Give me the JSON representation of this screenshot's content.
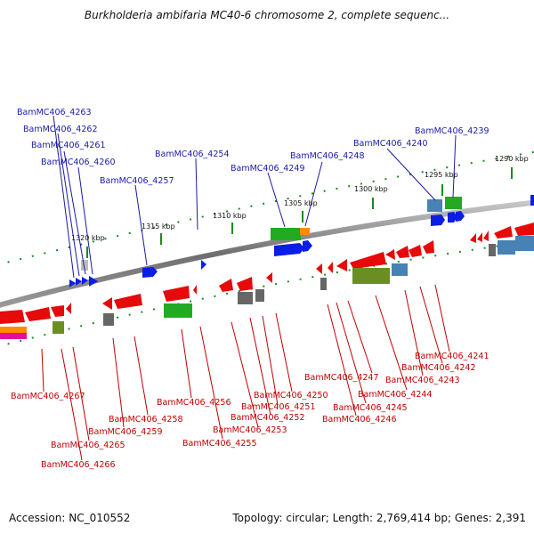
{
  "title": "Burkholderia ambifaria MC40-6 chromosome 2, complete sequenc...",
  "accession": "Accession: NC_010552",
  "summary": "Topology: circular; Length: 2,769,414 bp; Genes: 2,391",
  "ticks": [
    "1320 kbp",
    "1315 kbp",
    "1310 kbp",
    "1305 kbp",
    "1300 kbp",
    "1295 kbp",
    "1290 kbp"
  ],
  "top_genes": [
    "BamMC406_4263",
    "BamMC406_4262",
    "BamMC406_4261",
    "BamMC406_4260",
    "BamMC406_4257",
    "BamMC406_4254",
    "BamMC406_4249",
    "BamMC406_4248",
    "BamMC406_4240",
    "BamMC406_4239"
  ],
  "bottom_genes": [
    "BamMC406_4267",
    "BamMC406_4266",
    "BamMC406_4265",
    "BamMC406_4259",
    "BamMC406_4258",
    "BamMC406_4256",
    "BamMC406_4255",
    "BamMC406_4253",
    "BamMC406_4252",
    "BamMC406_4251",
    "BamMC406_4250",
    "BamMC406_4247",
    "BamMC406_4246",
    "BamMC406_4245",
    "BamMC406_4244",
    "BamMC406_4243",
    "BamMC406_4242",
    "BamMC406_4241"
  ],
  "colors": {
    "forward": "#0a1ee6",
    "reverse": "#e60a0a",
    "green": "#22aa22",
    "olive": "#6b8e23",
    "gray": "#666666",
    "steel": "#4682b4",
    "orange": "#ff8c00",
    "pink": "#e0109a",
    "label_top": "#1a1aa6",
    "label_bottom": "#c00000"
  }
}
